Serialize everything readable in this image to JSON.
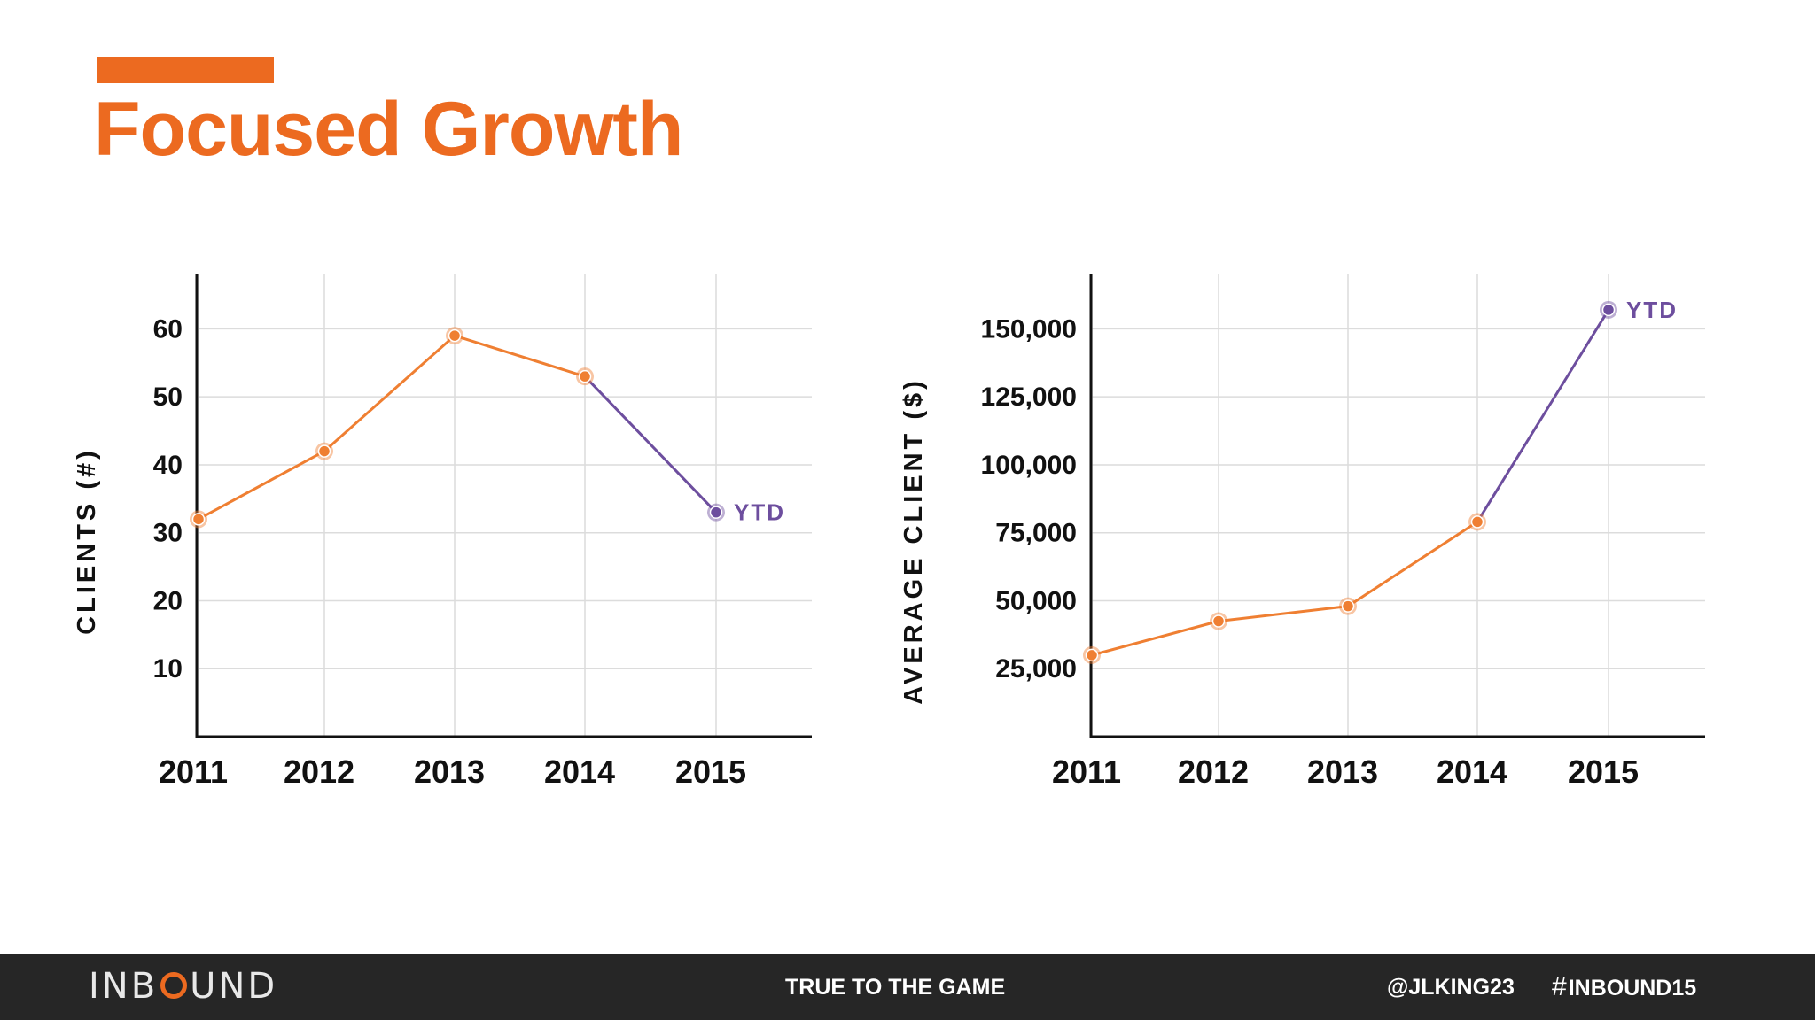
{
  "slide": {
    "title": "Focused Growth",
    "accent_color": "#ec6a20"
  },
  "footer": {
    "brand_prefix": "INB",
    "brand_o": "O",
    "brand_suffix": "UND",
    "tagline": "TRUE TO THE GAME",
    "handle": "@JLKING23",
    "hashtag_symbol": "#",
    "hashtag_text": "INBOUND15"
  },
  "colors": {
    "actual": "#ef7f32",
    "ytd": "#6d4e9e",
    "grid": "#dcdcdc",
    "axis": "#111111"
  },
  "chart_data": [
    {
      "type": "line",
      "categories": [
        "2011",
        "2012",
        "2013",
        "2014",
        "2015"
      ],
      "values": [
        32,
        42,
        59,
        53,
        33
      ],
      "ytd_index": 4,
      "ytd_label": "YTD",
      "ylabel": "CLIENTS (#)",
      "xlabel": "",
      "yticks": [
        10,
        20,
        30,
        40,
        50,
        60
      ],
      "ytick_labels": [
        "10",
        "20",
        "30",
        "40",
        "50",
        "60"
      ],
      "ylim": [
        0,
        68
      ],
      "grid": true
    },
    {
      "type": "line",
      "categories": [
        "2011",
        "2012",
        "2013",
        "2014",
        "2015"
      ],
      "values": [
        30000,
        42500,
        48000,
        79000,
        157000
      ],
      "ytd_index": 4,
      "ytd_label": "YTD",
      "ylabel": "AVERAGE CLIENT ($)",
      "xlabel": "",
      "yticks": [
        25000,
        50000,
        75000,
        100000,
        125000,
        150000
      ],
      "ytick_labels": [
        "25,000",
        "50,000",
        "75,000",
        "100,000",
        "125,000",
        "150,000"
      ],
      "ylim": [
        0,
        170000
      ],
      "grid": true
    }
  ]
}
